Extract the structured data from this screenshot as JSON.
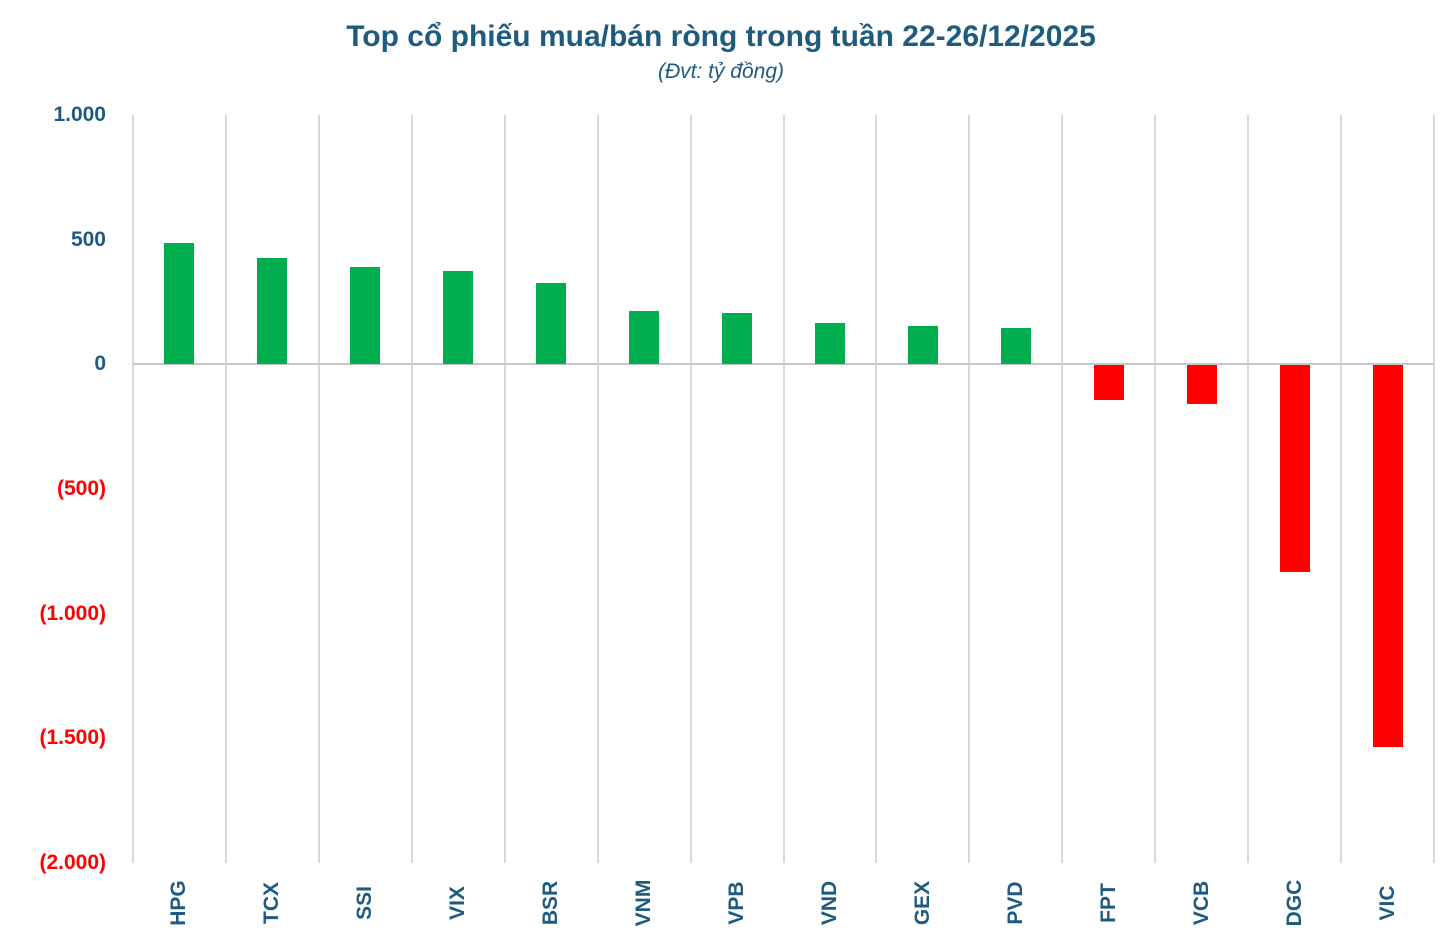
{
  "title": "Top cổ phiếu mua/bán ròng trong tuần 22-26/12/2025",
  "subtitle": "(Đvt: tỷ đồng)",
  "colors": {
    "title_text": "#1F5B7E",
    "axis_text": "#1F5B7E",
    "negative_axis_text": "#FF0000",
    "positive_bar": "#00AD4F",
    "negative_bar": "#FE0000",
    "gridline": "#D9D9D9",
    "zero_line": "#C6C6C6",
    "background": "#FFFFFF"
  },
  "chart_data": {
    "type": "bar",
    "title": "Top cổ phiếu mua/bán ròng trong tuần 22-26/12/2025",
    "subtitle": "(Đvt: tỷ đồng)",
    "unit": "tỷ đồng",
    "categories": [
      "HPG",
      "TCX",
      "SSI",
      "VIX",
      "BSR",
      "VNM",
      "VPB",
      "VND",
      "GEX",
      "PVD",
      "FPT",
      "VCB",
      "DGC",
      "VIC"
    ],
    "values": [
      485,
      425,
      390,
      375,
      325,
      215,
      205,
      165,
      155,
      145,
      -140,
      -155,
      -830,
      -1530
    ],
    "xlabel": "",
    "ylabel": "",
    "ylim": [
      -2000,
      1000
    ],
    "yticks": [
      {
        "value": 1000,
        "label": "1.000"
      },
      {
        "value": 500,
        "label": "500"
      },
      {
        "value": 0,
        "label": "0"
      },
      {
        "value": -500,
        "label": "(500)"
      },
      {
        "value": -1000,
        "label": "(1.000)"
      },
      {
        "value": -1500,
        "label": "(1.500)"
      },
      {
        "value": -2000,
        "label": "(2.000)"
      }
    ],
    "grid": "vertical-category-separators-only",
    "legend": "none",
    "bar_color_rule": "green-if-positive-red-if-negative",
    "x_label_rotation_degrees": -90
  }
}
